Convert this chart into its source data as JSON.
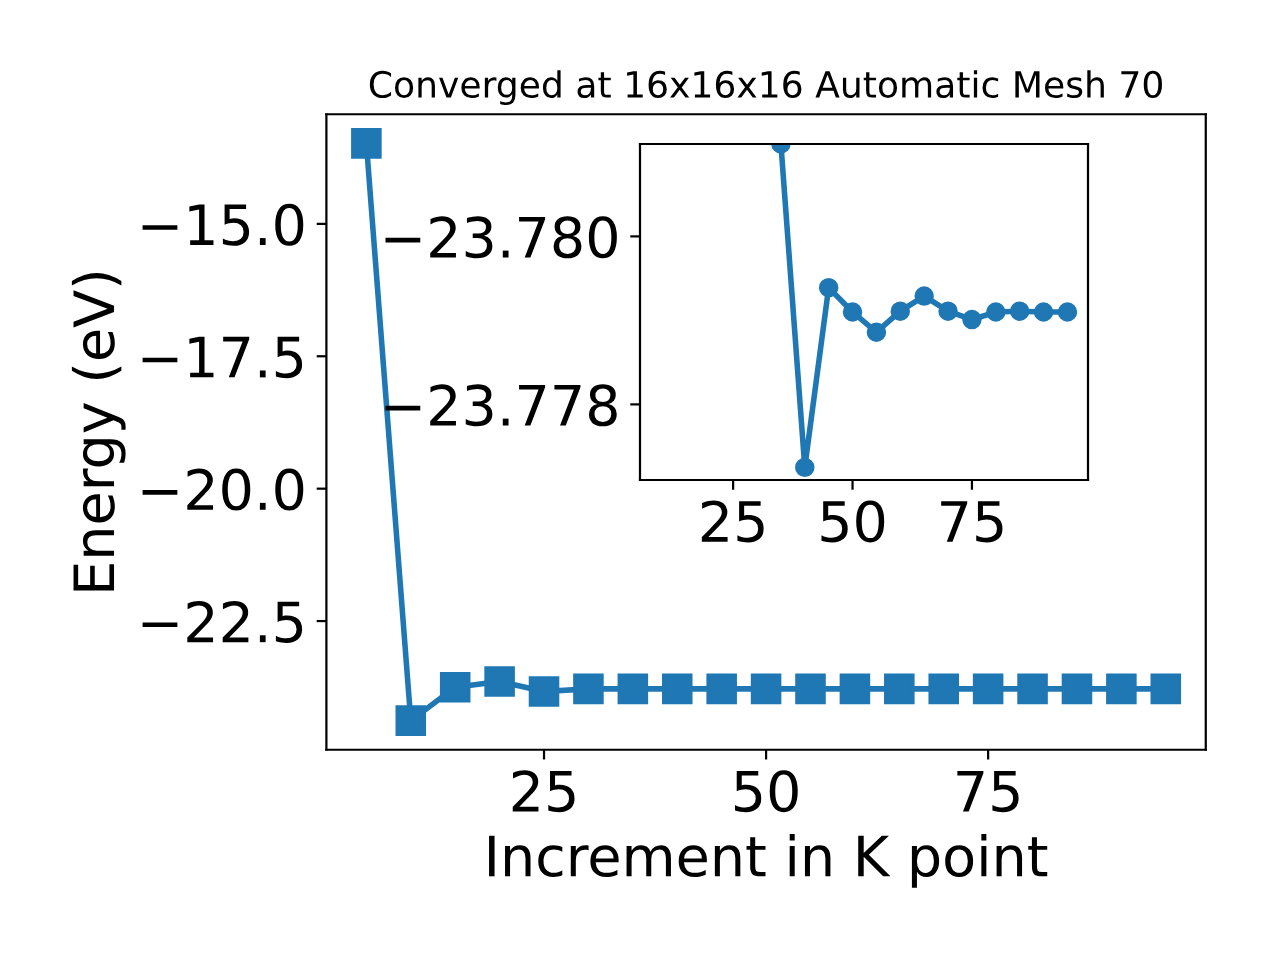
{
  "chart_data": [
    {
      "type": "line",
      "title": "Converged at 16x16x16 Automatic Mesh 70",
      "xlabel": "Increment in K point",
      "ylabel": "Energy (eV)",
      "x": [
        5,
        10,
        15,
        20,
        25,
        30,
        35,
        40,
        45,
        50,
        55,
        60,
        65,
        70,
        75,
        80,
        85,
        90,
        95
      ],
      "series": [
        {
          "color": "#1f77b4",
          "values": [
            -13.48,
            -24.38,
            -23.75,
            -23.64,
            -23.83,
            -23.78,
            -23.78,
            -23.78,
            -23.78,
            -23.78,
            -23.78,
            -23.78,
            -23.78,
            -23.78,
            -23.78,
            -23.78,
            -23.78,
            -23.78,
            -23.78
          ]
        }
      ],
      "xlim": [
        0.5,
        99.5
      ],
      "ylim": [
        -24.93,
        -12.93
      ],
      "xticks": [
        25,
        50,
        75
      ],
      "yticks": [
        {
          "value": -15,
          "label": "−15.0"
        },
        {
          "value": -17.5,
          "label": "−17.5"
        },
        {
          "value": -20,
          "label": "−20.0"
        },
        {
          "value": -22.5,
          "label": "−22.5"
        }
      ],
      "marker": "square",
      "line_style": "solid",
      "grid": false,
      "legend": false
    },
    {
      "type": "line",
      "x": [
        35,
        40,
        45,
        50,
        55,
        60,
        65,
        70,
        75,
        80,
        85,
        90,
        95
      ],
      "series": [
        {
          "color": "#1f77b4",
          "values": [
            -23.7811,
            -23.77725,
            -23.77939,
            -23.7791,
            -23.77886,
            -23.77911,
            -23.77929,
            -23.77911,
            -23.77901,
            -23.7791,
            -23.77911,
            -23.7791,
            -23.7791
          ]
        }
      ],
      "xlim": [
        5.5,
        99.3
      ],
      "ylim": [
        -23.7771,
        -23.7811
      ],
      "xticks": [
        25,
        50,
        75
      ],
      "yticks": [
        {
          "value": -23.78,
          "label": "−23.780"
        },
        {
          "value": -23.778,
          "label": "−23.778"
        }
      ],
      "marker": "circle",
      "line_style": "solid",
      "grid": false,
      "legend": false
    }
  ]
}
